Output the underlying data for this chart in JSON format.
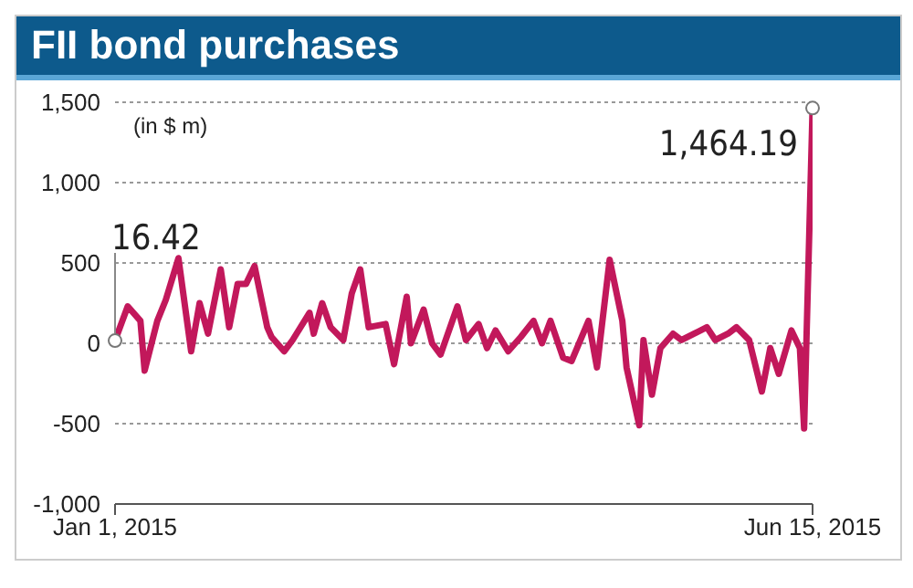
{
  "chart_data": {
    "type": "line",
    "title": "FII bond purchases",
    "annotations": [
      "(in $ m)"
    ],
    "x": [
      "2015-01-01",
      "2015-01-04",
      "2015-01-07",
      "2015-01-08",
      "2015-01-11",
      "2015-01-13",
      "2015-01-16",
      "2015-01-19",
      "2015-01-21",
      "2015-01-23",
      "2015-01-26",
      "2015-01-28",
      "2015-01-30",
      "2015-02-01",
      "2015-02-03",
      "2015-02-06",
      "2015-02-07",
      "2015-02-10",
      "2015-02-12",
      "2015-02-16",
      "2015-02-17",
      "2015-02-19",
      "2015-02-21",
      "2015-02-24",
      "2015-02-26",
      "2015-02-28",
      "2015-03-02",
      "2015-03-06",
      "2015-03-08",
      "2015-03-11",
      "2015-03-12",
      "2015-03-15",
      "2015-03-17",
      "2015-03-19",
      "2015-03-21",
      "2015-03-23",
      "2015-03-25",
      "2015-03-28",
      "2015-03-30",
      "2015-04-01",
      "2015-04-04",
      "2015-04-07",
      "2015-04-10",
      "2015-04-12",
      "2015-04-14",
      "2015-04-17",
      "2015-04-19",
      "2015-04-23",
      "2015-04-25",
      "2015-04-28",
      "2015-05-01",
      "2015-05-02",
      "2015-05-05",
      "2015-05-06",
      "2015-05-08",
      "2015-05-10",
      "2015-05-13",
      "2015-05-15",
      "2015-05-18",
      "2015-05-21",
      "2015-05-23",
      "2015-05-26",
      "2015-05-28",
      "2015-05-31",
      "2015-06-03",
      "2015-06-05",
      "2015-06-07",
      "2015-06-10",
      "2015-06-12",
      "2015-06-13",
      "2015-06-15"
    ],
    "series": [
      {
        "color": "#c2185b",
        "values": [
          16.42,
          230,
          140,
          -170,
          140,
          270,
          530,
          -50,
          250,
          60,
          460,
          100,
          370,
          370,
          480,
          100,
          40,
          -50,
          20,
          190,
          60,
          250,
          100,
          20,
          310,
          460,
          100,
          120,
          -130,
          290,
          0,
          210,
          0,
          -70,
          80,
          230,
          20,
          120,
          -30,
          80,
          -50,
          40,
          140,
          0,
          140,
          -90,
          -110,
          140,
          -150,
          520,
          140,
          -150,
          -510,
          20,
          -320,
          -30,
          60,
          20,
          60,
          100,
          20,
          60,
          100,
          20,
          -300,
          -30,
          -190,
          80,
          -30,
          -530,
          1464.19
        ],
        "value_labels": [
          "16.42",
          null,
          null,
          null,
          null,
          null,
          null,
          null,
          null,
          null,
          null,
          null,
          null,
          null,
          null,
          null,
          null,
          null,
          null,
          null,
          null,
          null,
          null,
          null,
          null,
          null,
          null,
          null,
          null,
          null,
          null,
          null,
          null,
          null,
          null,
          null,
          null,
          null,
          null,
          null,
          null,
          null,
          null,
          null,
          null,
          null,
          null,
          null,
          null,
          null,
          null,
          null,
          null,
          null,
          null,
          null,
          null,
          null,
          null,
          null,
          null,
          null,
          null,
          null,
          null,
          null,
          null,
          null,
          null,
          null,
          "1,464.19"
        ]
      }
    ],
    "xlim": [
      "2015-01-01",
      "2015-06-15"
    ],
    "xticks": [
      {
        "value": "2015-01-01",
        "label": "Jan 1, 2015"
      },
      {
        "value": "2015-06-15",
        "label": "Jun 15, 2015"
      }
    ],
    "ylim": [
      -1000,
      1500
    ],
    "yticks": [
      {
        "value": -1000,
        "label": "-1,000"
      },
      -500,
      0,
      500,
      {
        "value": 1000,
        "label": "1,000"
      },
      {
        "value": 1500,
        "label": "1,500"
      }
    ],
    "grid": "y",
    "legend": false,
    "marker": "none",
    "line_style": "solid"
  }
}
